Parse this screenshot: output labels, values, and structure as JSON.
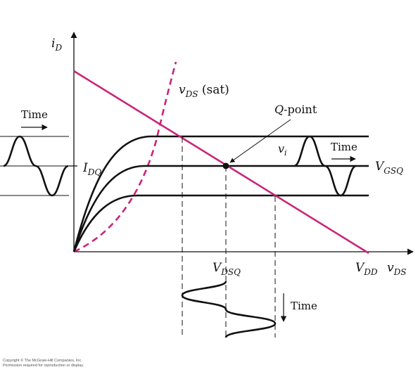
{
  "colors": {
    "ink": "#111111",
    "magenta": "#c8247a"
  },
  "axes": {
    "y_main": "i",
    "y_sub": "D",
    "x_main": "v",
    "x_sub": "DS"
  },
  "labels": {
    "vds_sat_main": "v",
    "vds_sat_sub": "DS",
    "vds_sat_suffix": " (sat)",
    "qpoint_q": "Q",
    "qpoint_rest": "-point",
    "idq_main": "I",
    "idq_sub": "DQ",
    "vgsq_main": "V",
    "vgsq_sub": "GSQ",
    "vi_main": "v",
    "vi_sub": "i",
    "vdsq_main": "V",
    "vdsq_sub": "DSQ",
    "vdd_main": "V",
    "vdd_sub": "DD",
    "time_left": "Time",
    "time_right": "Time",
    "time_bottom": "Time"
  },
  "copyright": {
    "line1": "Copyright © The McGraw-Hill Companies, Inc.",
    "line2": "Permission required for reproduction or display."
  }
}
